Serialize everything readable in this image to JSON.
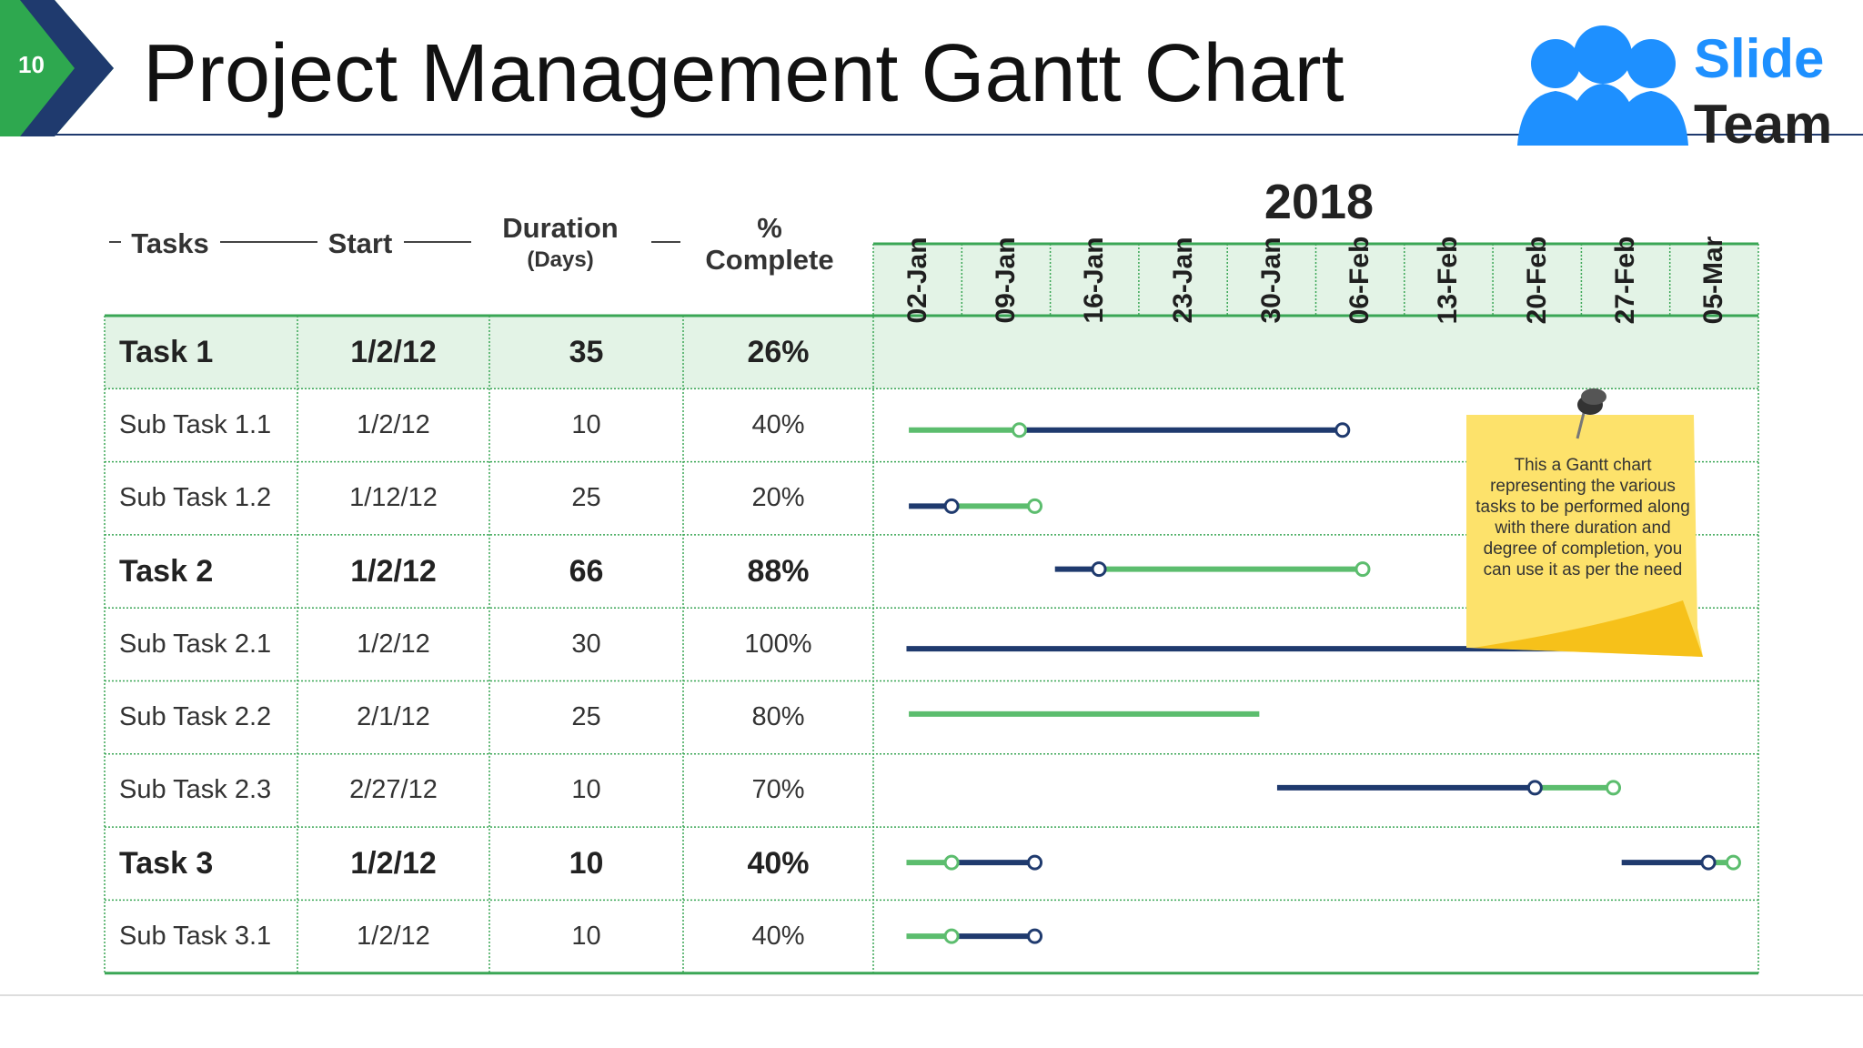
{
  "page_number": "10",
  "title": "Project Management Gantt Chart",
  "logo": {
    "line1": "Slide",
    "line2": "Team"
  },
  "year": "2018",
  "columns": [
    [
      "Tasks"
    ],
    [
      "Start"
    ],
    [
      "Duration",
      "(Days)"
    ],
    [
      "%",
      "Complete"
    ]
  ],
  "dates": [
    "02-Jan",
    "09-Jan",
    "16-Jan",
    "23-Jan",
    "30-Jan",
    "06-Feb",
    "13-Feb",
    "20-Feb",
    "27-Feb",
    "05-Mar"
  ],
  "rows": [
    [
      "Task 1",
      "1/2/12",
      "35",
      "26%"
    ],
    [
      "Sub Task 1.1",
      "1/2/12",
      "10",
      "40%"
    ],
    [
      "Sub Task 1.2",
      "1/12/12",
      "25",
      "20%"
    ],
    [
      "Task 2",
      "1/2/12",
      "66",
      "88%"
    ],
    [
      "Sub Task 2.1",
      "1/2/12",
      "30",
      "100%"
    ],
    [
      "Sub Task 2.2",
      "2/1/12",
      "25",
      "80%"
    ],
    [
      "Sub Task 2.3",
      "2/27/12",
      "10",
      "70%"
    ],
    [
      "Task 3",
      "1/2/12",
      "10",
      "40%"
    ],
    [
      "Sub Task 3.1",
      "1/2/12",
      "10",
      "40%"
    ]
  ],
  "note": "This a Gantt chart representing the various tasks to be performed along with there duration and degree of completion, you can use it as per the need"
}
